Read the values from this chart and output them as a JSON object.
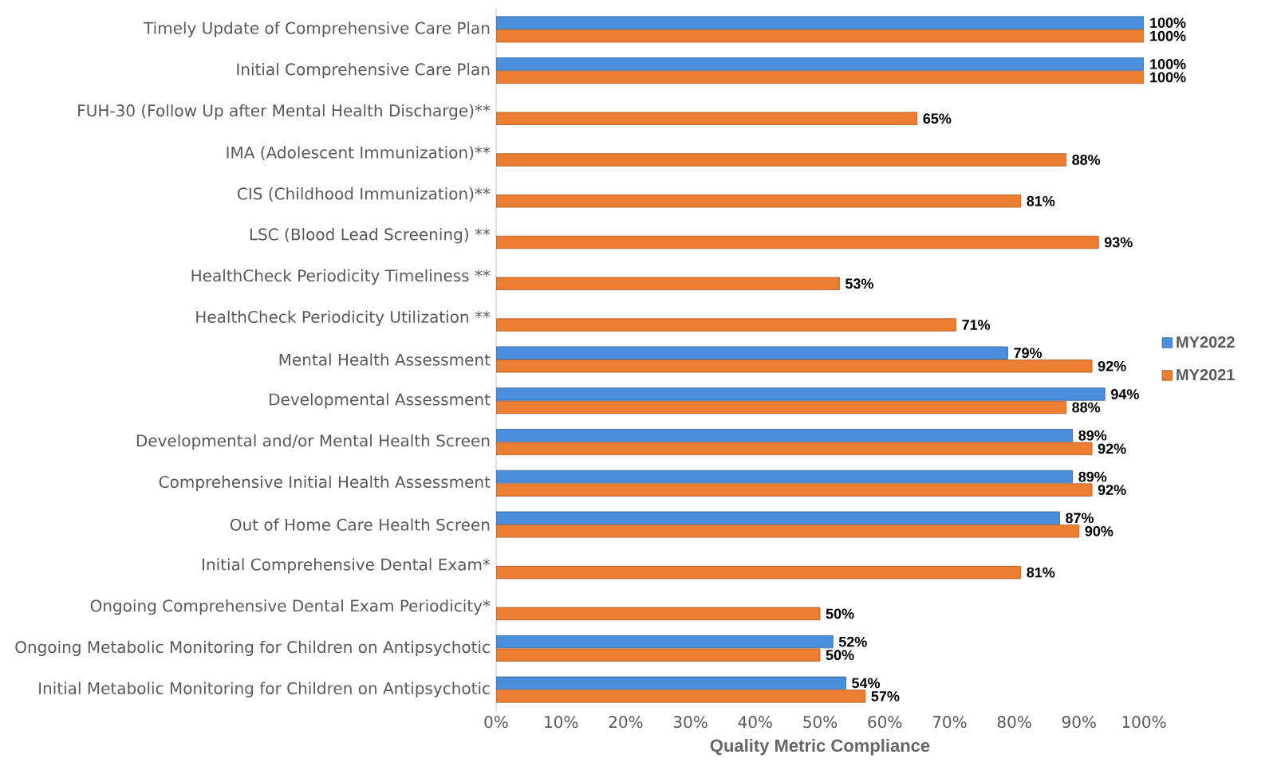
{
  "chart_data": {
    "type": "bar",
    "orientation": "horizontal",
    "xlabel": "Quality Metric Compliance",
    "categories": [
      "Timely Update of Comprehensive Care Plan",
      "Initial Comprehensive Care Plan",
      "FUH-30 (Follow Up after Mental Health Discharge)**",
      "IMA (Adolescent Immunization)**",
      "CIS (Childhood Immunization)**",
      "LSC (Blood Lead Screening) **",
      "HealthCheck Periodicity Timeliness **",
      "HealthCheck Periodicity Utilization **",
      "Mental Health Assessment",
      "Developmental Assessment",
      "Developmental and/or Mental Health Screen",
      "Comprehensive Initial Health Assessment",
      "Out of Home Care Health Screen",
      "Initial Comprehensive Dental Exam*",
      "Ongoing Comprehensive Dental Exam Periodicity*",
      "Ongoing Metabolic Monitoring for Children on Antipsychotic",
      "Initial Metabolic Monitoring for Children on Antipsychotic"
    ],
    "series": [
      {
        "name": "MY2022",
        "color": "#4a8fdb",
        "values": [
          100,
          100,
          null,
          null,
          null,
          null,
          null,
          null,
          79,
          94,
          89,
          89,
          87,
          null,
          null,
          52,
          54
        ],
        "value_labels": [
          "100%",
          "100%",
          null,
          null,
          null,
          null,
          null,
          null,
          "79%",
          "94%",
          "89%",
          "89%",
          "87%",
          null,
          null,
          "52%",
          "54%"
        ]
      },
      {
        "name": "MY2021",
        "color": "#ed7d31",
        "values": [
          100,
          100,
          65,
          88,
          81,
          93,
          53,
          71,
          92,
          88,
          92,
          92,
          90,
          81,
          50,
          50,
          57
        ],
        "value_labels": [
          "100%",
          "100%",
          "65%",
          "88%",
          "81%",
          "93%",
          "53%",
          "71%",
          "92%",
          "88%",
          "92%",
          "92%",
          "90%",
          "81%",
          "50%",
          "50%",
          "57%"
        ]
      }
    ],
    "xlim": [
      0,
      100
    ],
    "xticks": [
      {
        "value": 0,
        "label": "0%"
      },
      {
        "value": 10,
        "label": "10%"
      },
      {
        "value": 20,
        "label": "20%"
      },
      {
        "value": 30,
        "label": "30%"
      },
      {
        "value": 40,
        "label": "40%"
      },
      {
        "value": 50,
        "label": "50%"
      },
      {
        "value": 60,
        "label": "60%"
      },
      {
        "value": 70,
        "label": "70%"
      },
      {
        "value": 80,
        "label": "80%"
      },
      {
        "value": 90,
        "label": "90%"
      },
      {
        "value": 100,
        "label": "100%"
      }
    ],
    "legend": "right",
    "grid": false
  }
}
